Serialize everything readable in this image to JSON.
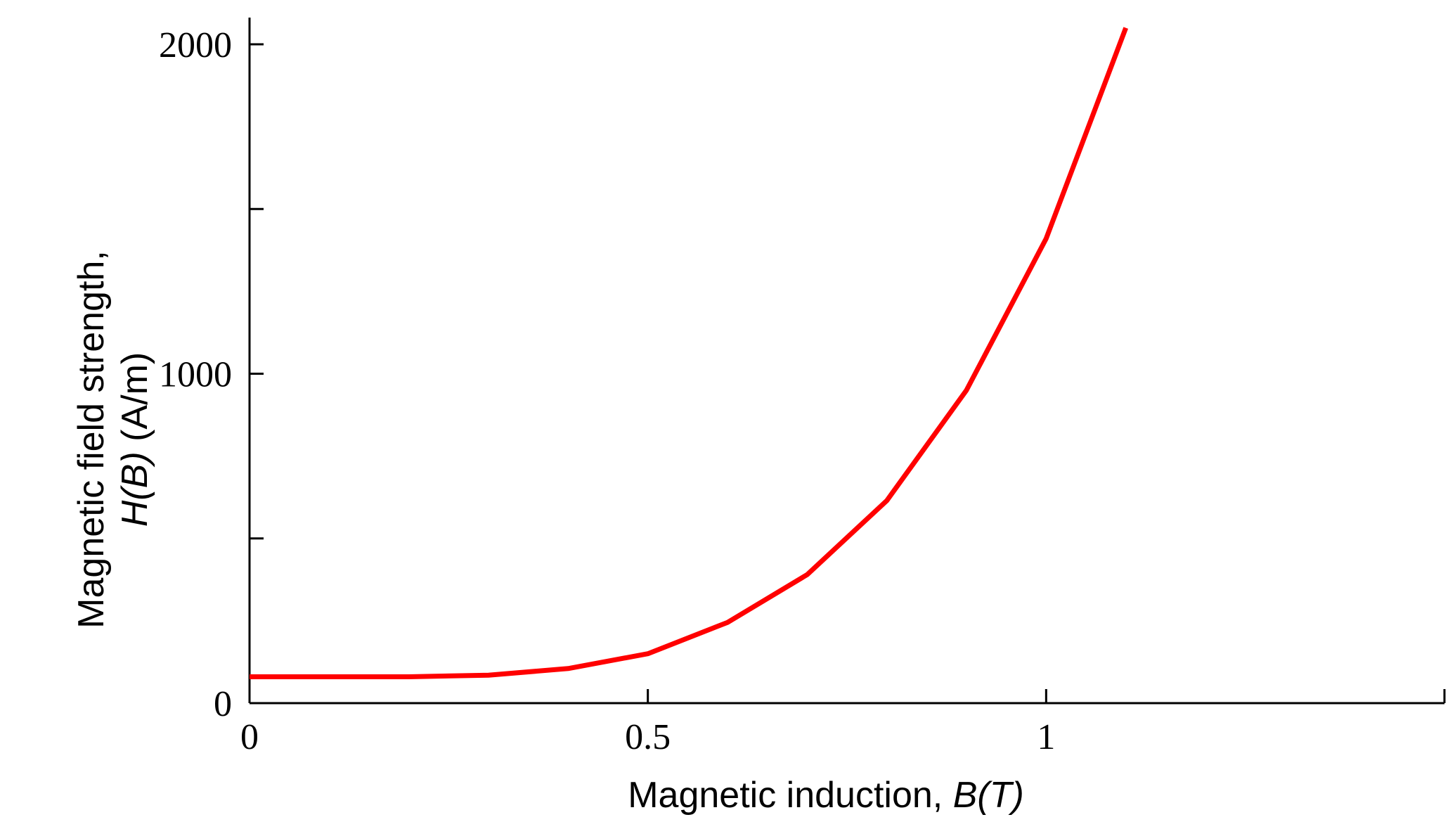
{
  "chart_data": {
    "type": "line",
    "title": "",
    "xlabel_main": "Magnetic induction, ",
    "xlabel_var": "B(T)",
    "ylabel_line1": "Magnetic field strength,",
    "ylabel_line2_var": "H(B)",
    "ylabel_line2_unit": " (A/m)",
    "xlim": [
      0,
      1.5
    ],
    "ylim": [
      0,
      2000
    ],
    "x_ticks": [
      0,
      0.5,
      1,
      1.5
    ],
    "x_tick_labels": [
      "0",
      "0.5",
      "1",
      ""
    ],
    "y_ticks": [
      0,
      500,
      1000,
      1500,
      2000
    ],
    "y_tick_labels": [
      "0",
      "",
      "1000",
      "",
      "2000"
    ],
    "grid": false,
    "series": [
      {
        "color": "#ff0000",
        "x": [
          0,
          0.1,
          0.2,
          0.3,
          0.4,
          0.5,
          0.6,
          0.7,
          0.8,
          0.9,
          1.0,
          1.1
        ],
        "y": [
          80,
          80,
          80,
          85,
          105,
          150,
          245,
          390,
          615,
          950,
          1410,
          2050
        ]
      }
    ]
  }
}
